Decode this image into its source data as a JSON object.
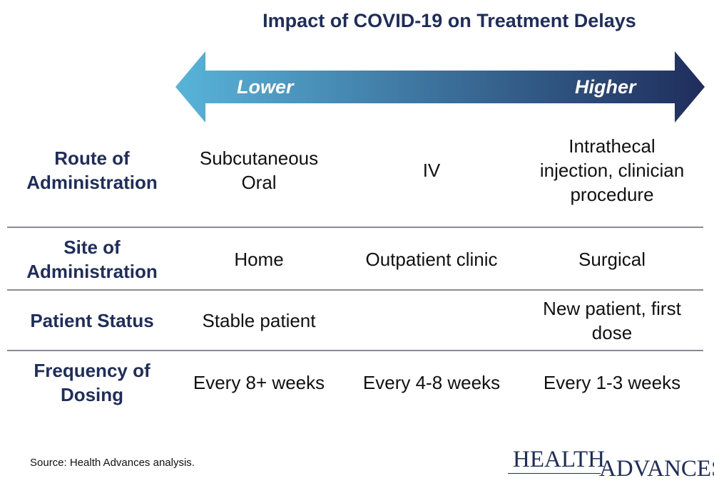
{
  "title": "Impact of COVID-19 on Treatment Delays",
  "scale": {
    "low_label": "Lower",
    "high_label": "Higher"
  },
  "colors": {
    "title": "#1f2d5c",
    "arrow_start": "#58b4da",
    "arrow_end": "#1f2d5c",
    "divider": "#8a8a96"
  },
  "rows": [
    {
      "label_lines": [
        "Route of",
        "Administration"
      ],
      "cells": [
        {
          "lines": [
            "Subcutaneous",
            "Oral"
          ]
        },
        {
          "lines": [
            "IV"
          ]
        },
        {
          "lines": [
            "Intrathecal",
            "injection, clinician",
            "procedure"
          ]
        }
      ]
    },
    {
      "label_lines": [
        "Site of",
        "Administration"
      ],
      "cells": [
        {
          "lines": [
            "Home"
          ]
        },
        {
          "lines": [
            "Outpatient clinic"
          ]
        },
        {
          "lines": [
            "Surgical"
          ]
        }
      ]
    },
    {
      "label_lines": [
        "Patient Status"
      ],
      "cells": [
        {
          "lines": [
            "Stable patient"
          ]
        },
        {
          "lines": []
        },
        {
          "lines": [
            "New patient, first",
            "dose"
          ]
        }
      ]
    },
    {
      "label_lines": [
        "Frequency of",
        "Dosing"
      ],
      "cells": [
        {
          "lines": [
            "Every 8+ weeks"
          ]
        },
        {
          "lines": [
            "Every 4-8 weeks"
          ]
        },
        {
          "lines": [
            "Every 1-3 weeks"
          ]
        }
      ]
    }
  ],
  "source": "Source:  Health Advances analysis.",
  "logo": {
    "word1": "HEALTH",
    "word2": "ADVANCES"
  }
}
